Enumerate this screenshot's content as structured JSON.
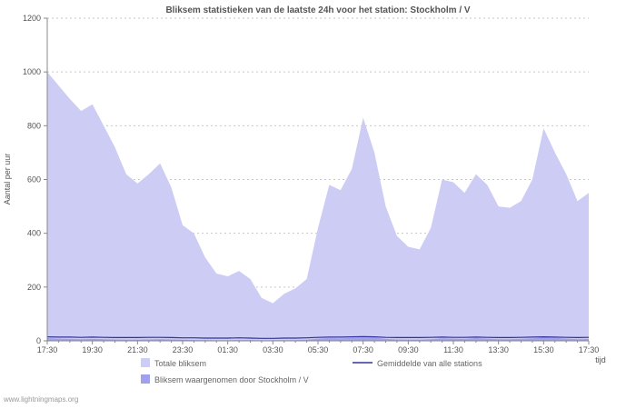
{
  "page": {
    "watermark": "www.lightningmaps.org"
  },
  "chart_data": {
    "type": "area",
    "title": "Bliksem statistieken van de laatste 24h voor het station: Stockholm / V",
    "ylabel": "Aantal per uur",
    "xlabel": "tijd",
    "ylim": [
      0,
      1200
    ],
    "ytick_step": 200,
    "grid": true,
    "legend_position": "bottom",
    "x_major_every": 4,
    "x_tick_labels": [
      "17:30",
      "19:30",
      "21:30",
      "23:30",
      "01:30",
      "03:30",
      "05:30",
      "07:30",
      "09:30",
      "11:30",
      "13:30",
      "15:30",
      "17:30"
    ],
    "series": [
      {
        "name": "Totale bliksem",
        "type": "area",
        "color": "#ccccf5",
        "values": [
          1000,
          950,
          900,
          855,
          880,
          800,
          720,
          620,
          585,
          620,
          660,
          570,
          430,
          400,
          310,
          250,
          240,
          260,
          230,
          160,
          140,
          175,
          195,
          230,
          420,
          580,
          560,
          640,
          830,
          700,
          500,
          390,
          350,
          340,
          420,
          600,
          590,
          550,
          620,
          580,
          500,
          495,
          520,
          600,
          790,
          700,
          620,
          520,
          550
        ]
      },
      {
        "name": "Bliksem waargenomen door Stockholm / V",
        "type": "area",
        "color": "#a0a0ec",
        "values": [
          10,
          8,
          7,
          6,
          7,
          6,
          5,
          4,
          4,
          5,
          6,
          5,
          4,
          3,
          3,
          2,
          2,
          3,
          3,
          2,
          2,
          2,
          3,
          4,
          8,
          10,
          9,
          11,
          15,
          12,
          7,
          5,
          4,
          4,
          6,
          9,
          8,
          7,
          10,
          8,
          6,
          6,
          7,
          9,
          13,
          11,
          8,
          6,
          7
        ]
      },
      {
        "name": "Gemiddelde van alle stations",
        "type": "line",
        "color": "#333399",
        "values": [
          15,
          14,
          14,
          13,
          14,
          13,
          12,
          12,
          12,
          13,
          13,
          12,
          11,
          11,
          10,
          10,
          10,
          11,
          10,
          9,
          9,
          10,
          10,
          11,
          13,
          14,
          14,
          15,
          16,
          15,
          13,
          12,
          12,
          12,
          13,
          14,
          13,
          13,
          14,
          13,
          12,
          12,
          13,
          14,
          15,
          14,
          13,
          12,
          13
        ]
      }
    ]
  }
}
